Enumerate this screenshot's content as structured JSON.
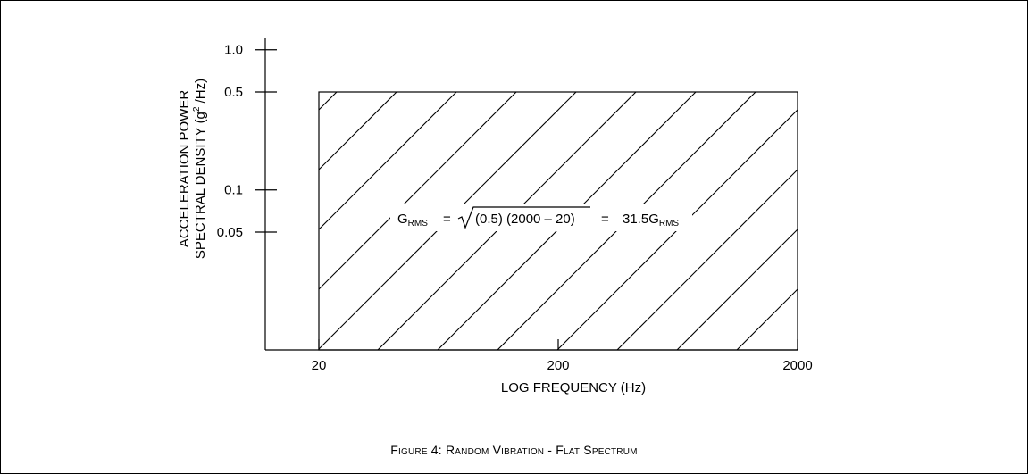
{
  "chart_data": {
    "type": "area",
    "title": "",
    "xlabel": "LOG FREQUENCY (Hz)",
    "ylabel_line1": "ACCELERATION POWER",
    "ylabel_line2_pre": "SPECTRAL DENSITY (g",
    "ylabel_line2_sup": "2",
    "ylabel_line2_post": " /Hz)",
    "x_scale": "log",
    "y_scale": "log",
    "xlim": [
      20,
      2000
    ],
    "x_ticks": [
      {
        "value": 20,
        "label": "20"
      },
      {
        "value": 200,
        "label": "200"
      },
      {
        "value": 2000,
        "label": "2000"
      }
    ],
    "y_ticks": [
      {
        "value": 1.0,
        "label": "1.0"
      },
      {
        "value": 0.5,
        "label": "0.5"
      },
      {
        "value": 0.1,
        "label": "0.1"
      },
      {
        "value": 0.05,
        "label": "0.05"
      }
    ],
    "series": [
      {
        "x": [
          20,
          2000
        ],
        "y": [
          0.5,
          0.5
        ],
        "fill": "diagonal-hatch"
      }
    ],
    "grid": false,
    "annotation": {
      "g": "G",
      "rms_sub": "RMS",
      "equals1": "=",
      "radicand": "(0.5) (2000 – 20)",
      "equals2": "=",
      "result": "31.5G",
      "result_sub": "RMS"
    }
  },
  "caption": "Figure 4: Random Vibration - Flat Spectrum"
}
